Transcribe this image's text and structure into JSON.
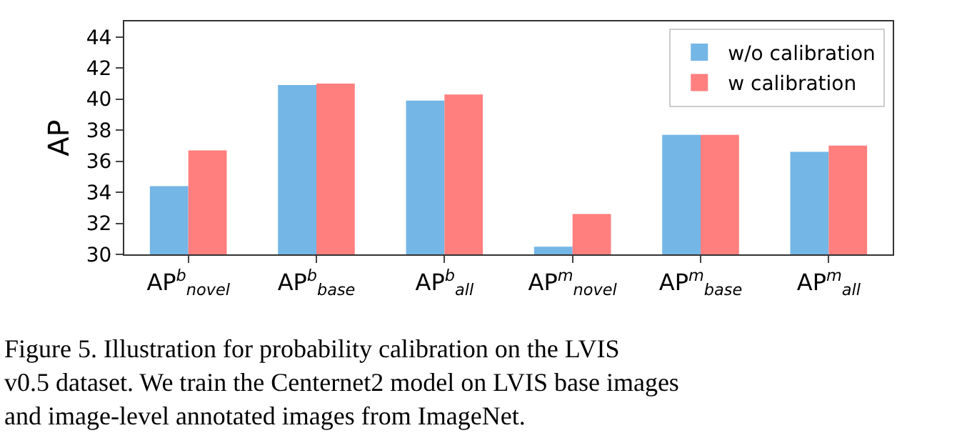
{
  "chart_data": {
    "type": "bar",
    "categories": [
      "AP$^{b}$$_{novel}$",
      "AP$^{b}$$_{base}$",
      "AP$^{b}$$_{all}$",
      "AP$^{m}$$_{novel}$",
      "AP$^{m}$$_{base}$",
      "AP$^{m}$$_{all}$"
    ],
    "series": [
      {
        "name": "w/o calibration",
        "color": "#74b6e6",
        "values": [
          34.4,
          40.9,
          39.9,
          30.5,
          37.7,
          36.6
        ]
      },
      {
        "name": "w calibration",
        "color": "#ff7f7f",
        "values": [
          36.7,
          41.0,
          40.3,
          32.6,
          37.7,
          37.0
        ]
      }
    ],
    "ylabel": "AP",
    "ylim": [
      30,
      45
    ],
    "yticks": [
      30,
      32,
      34,
      36,
      38,
      40,
      42,
      44
    ],
    "legend": "top right",
    "annotations": [
      "Figure 5. Illustration for probability calibration on the LVIS v0.5 dataset. We train the Centernet2 model on LVIS base images and image-level annotated images from ImageNet."
    ]
  }
}
